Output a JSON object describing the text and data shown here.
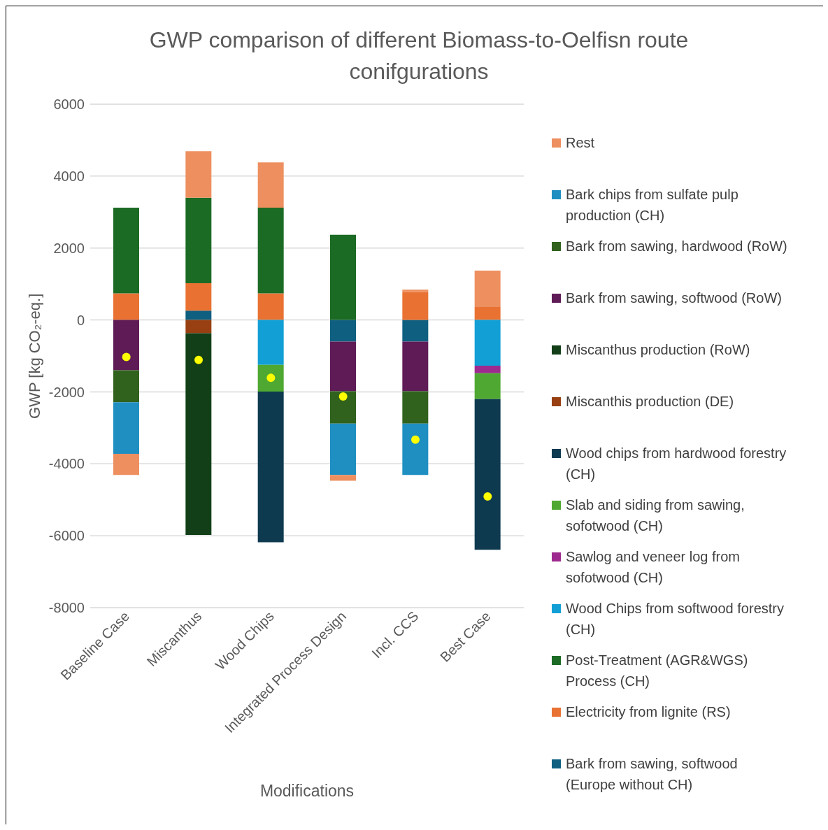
{
  "chart_data": {
    "type": "bar",
    "title": "GWP comparison of different Biomass-to-Oelfisn route conifgurations",
    "xlabel": "Modifications",
    "ylabel": "GWP [kg CO₂-eq.]",
    "categories": [
      "Baseline Case",
      "Miscanthus",
      "Wood Chips",
      "Integrated Process Design",
      "Incl. CCS",
      "Best Case"
    ],
    "stacked": true,
    "ylim": [
      -8000,
      6000
    ],
    "yticks": [
      -8000,
      -6000,
      -4000,
      -2000,
      0,
      2000,
      4000,
      6000
    ],
    "grid": "y",
    "legend": "right",
    "series": [
      {
        "name": "Bark from sawing, softwood (Europe without CH)",
        "color": "#0f5f80",
        "values": [
          null,
          260,
          null,
          -600,
          -600,
          null
        ]
      },
      {
        "name": "Electricity from lignite (RS)",
        "color": "#e97232",
        "values": [
          740,
          760,
          740,
          null,
          780,
          360
        ]
      },
      {
        "name": "Post-Treatment (AGR&WGS) Process (CH)",
        "color": "#1b6b24",
        "values": [
          2380,
          2380,
          2380,
          2370,
          null,
          null
        ]
      },
      {
        "name": "Wood Chips from softwood forestry (CH)",
        "color": "#119fd6",
        "values": [
          null,
          null,
          -1250,
          null,
          null,
          -1270
        ]
      },
      {
        "name": "Sawlog and veneer log from sofotwood (CH)",
        "color": "#9e2a8f",
        "values": [
          null,
          null,
          null,
          null,
          null,
          -210
        ]
      },
      {
        "name": "Slab and siding from sawing, sofotwood (CH)",
        "color": "#4fa831",
        "values": [
          null,
          null,
          -740,
          null,
          null,
          -720
        ]
      },
      {
        "name": "Wood chips from hardwood forestry (CH)",
        "color": "#0e3a50",
        "values": [
          null,
          null,
          -4190,
          null,
          null,
          -4190
        ]
      },
      {
        "name": "Miscanthis production (DE)",
        "color": "#984012",
        "values": [
          null,
          -370,
          null,
          null,
          null,
          null
        ]
      },
      {
        "name": "Miscanthus production (RoW)",
        "color": "#123f17",
        "values": [
          null,
          -5610,
          null,
          null,
          null,
          null
        ]
      },
      {
        "name": "Bark from sawing, softwood (RoW)",
        "color": "#5f1b56",
        "values": [
          -1400,
          null,
          null,
          -1380,
          -1380,
          null
        ]
      },
      {
        "name": "Bark from sawing, hardwood (RoW)",
        "color": "#30621e",
        "values": [
          -890,
          null,
          null,
          -900,
          -900,
          null
        ]
      },
      {
        "name": "Bark chips from sulfate pulp production (CH)",
        "color": "#1f8fc1",
        "values": [
          -1430,
          null,
          null,
          -1430,
          -1430,
          null
        ]
      },
      {
        "name": "Rest",
        "color": "#ee8f5f",
        "values": [
          -590,
          1290,
          1260,
          -160,
          60,
          1010
        ]
      },
      {
        "type": "scatter",
        "color": "#ffff00",
        "values": [
          -1030,
          -1110,
          -1610,
          -2130,
          -3330,
          -4910
        ]
      }
    ]
  }
}
